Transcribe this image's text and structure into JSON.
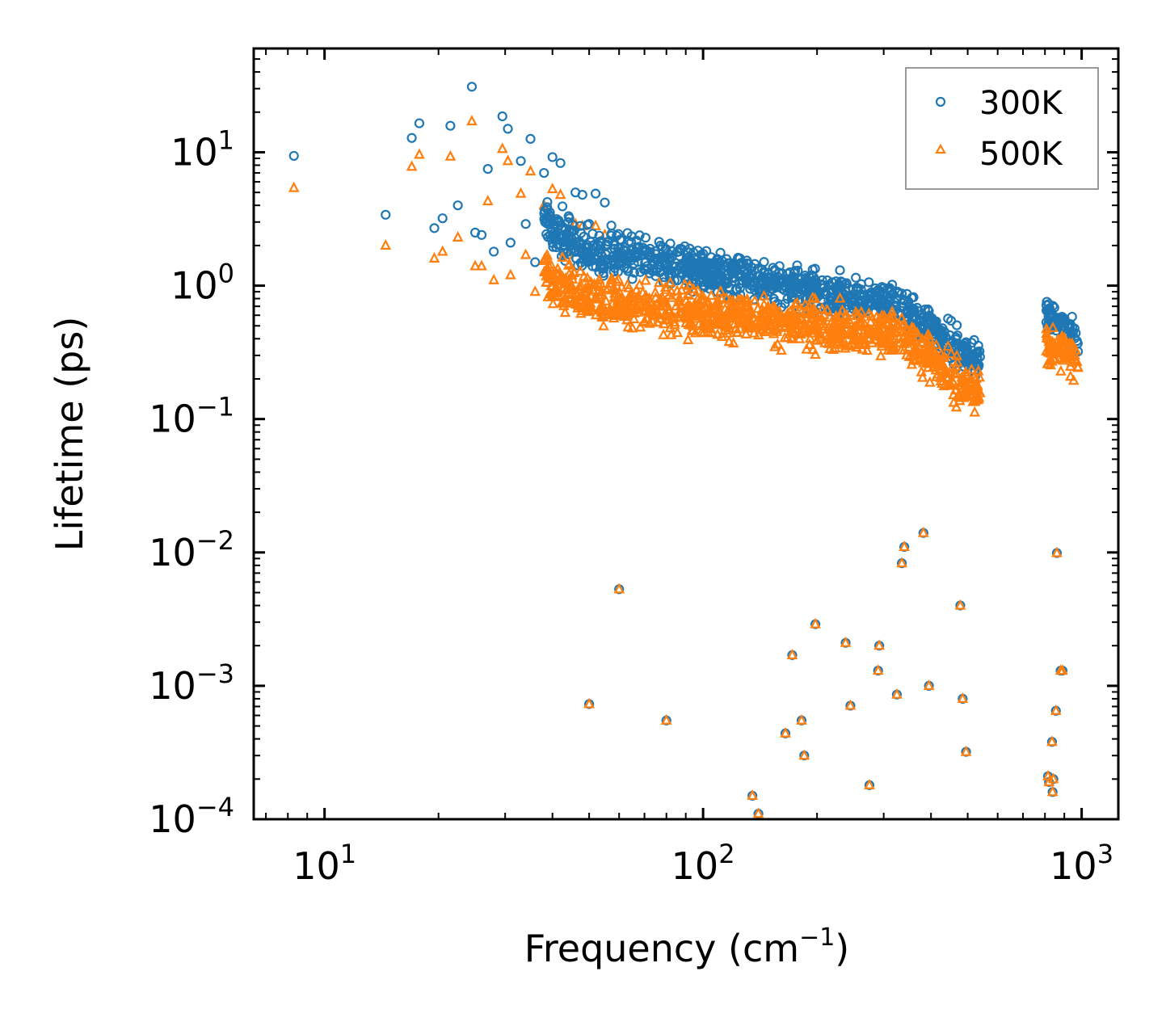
{
  "chart_data": {
    "type": "scatter",
    "xscale": "log",
    "yscale": "log",
    "xlim": [
      6.5,
      1250
    ],
    "ylim": [
      0.0001,
      60
    ],
    "xlabel": "Frequency (cm",
    "xlabel_sup": "−1",
    "xlabel_end": ")",
    "ylabel": "Lifetime (ps)",
    "x_ticks": [
      {
        "value": 10,
        "base": "10",
        "exp": "1"
      },
      {
        "value": 100,
        "base": "10",
        "exp": "2"
      },
      {
        "value": 1000,
        "base": "10",
        "exp": "3"
      }
    ],
    "y_ticks": [
      {
        "value": 10,
        "base": "10",
        "exp": "1"
      },
      {
        "value": 1,
        "base": "10",
        "exp": "0"
      },
      {
        "value": 0.1,
        "base": "10",
        "exp": "−1"
      },
      {
        "value": 0.01,
        "base": "10",
        "exp": "−2"
      },
      {
        "value": 0.001,
        "base": "10",
        "exp": "−3"
      },
      {
        "value": 0.0001,
        "base": "10",
        "exp": "−4"
      }
    ],
    "legend_position": "top-right",
    "series": [
      {
        "name": "300K",
        "marker": "circle",
        "color": "#1f77b4",
        "scale": 1.0
      },
      {
        "name": "500K",
        "marker": "triangle",
        "color": "#ff7f0e",
        "scale": 0.6
      }
    ],
    "low_x": [
      8.3,
      14.5,
      17.0,
      17.8,
      19.5,
      20.5,
      21.5,
      22.5,
      24.5,
      25.0,
      26.0,
      27.0,
      28.0,
      29.5,
      30.5,
      31.0,
      33.0,
      34.0,
      35.0,
      36.0,
      38.0,
      40.0,
      42.0,
      44.0,
      46.0,
      48.0,
      50.0,
      52.0,
      55.0
    ],
    "low_y_300K": [
      9.4,
      3.4,
      12.8,
      16.5,
      2.7,
      3.2,
      15.8,
      4.0,
      31.0,
      2.5,
      2.4,
      7.5,
      1.8,
      18.6,
      15.0,
      2.1,
      8.6,
      2.9,
      12.6,
      1.5,
      7.0,
      9.2,
      8.3,
      3.0,
      5.0,
      4.8,
      2.9,
      4.9,
      4.2
    ],
    "low_y_500K": [
      5.4,
      2.0,
      7.8,
      9.6,
      1.6,
      1.8,
      9.3,
      2.3,
      17.1,
      1.4,
      1.4,
      4.3,
      1.1,
      10.6,
      8.6,
      1.2,
      4.9,
      1.7,
      7.2,
      0.9,
      4.0,
      5.3,
      4.8,
      1.7,
      2.9,
      2.8,
      1.7,
      2.8,
      2.4
    ],
    "band_segments": [
      {
        "x": [
          38,
          55
        ],
        "y300": [
          3.0,
          1.5
        ],
        "y500": [
          1.2,
          0.7
        ],
        "spread": 0.45
      },
      {
        "x": [
          55,
          330
        ],
        "y300": [
          1.8,
          0.7
        ],
        "y500": [
          0.75,
          0.42
        ],
        "spread": 0.4
      },
      {
        "x": [
          330,
          540
        ],
        "y300": [
          0.7,
          0.26
        ],
        "y500": [
          0.42,
          0.15
        ],
        "spread": 0.35
      },
      {
        "x": [
          800,
          980
        ],
        "y300": [
          0.6,
          0.4
        ],
        "y500": [
          0.35,
          0.27
        ],
        "spread": 0.3
      }
    ],
    "outliers_x": [
      50,
      60,
      80,
      135,
      140,
      165,
      172,
      182,
      185,
      198,
      238,
      245,
      275,
      290,
      292,
      325,
      335,
      340,
      382,
      395,
      478,
      485,
      495,
      815,
      820,
      835,
      838,
      842,
      855,
      860,
      880,
      890
    ],
    "outliers_y": [
      0.00073,
      0.0053,
      0.00055,
      0.00015,
      0.00011,
      0.00044,
      0.0017,
      0.00055,
      0.0003,
      0.0029,
      0.0021,
      0.00071,
      0.00018,
      0.0013,
      0.002,
      0.00086,
      0.0083,
      0.011,
      0.014,
      0.001,
      0.004,
      0.0008,
      0.00032,
      0.00021,
      0.00019,
      0.00038,
      0.00016,
      0.0002,
      0.00065,
      0.0099,
      0.0013,
      0.0013
    ]
  }
}
